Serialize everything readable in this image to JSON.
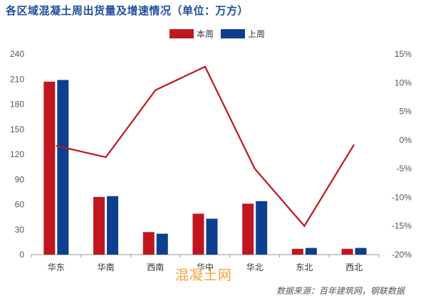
{
  "chart_data": {
    "type": "bar",
    "title": "各区域混凝土周出货量及增速情况（单位：万方）",
    "categories": [
      "华东",
      "华南",
      "西南",
      "华中",
      "华北",
      "东北",
      "西北"
    ],
    "series": [
      {
        "name": "本周",
        "type": "bar",
        "axis": "left",
        "values": [
          207,
          69,
          27,
          49,
          61,
          7,
          7
        ]
      },
      {
        "name": "上周",
        "type": "bar",
        "axis": "left",
        "values": [
          209,
          70,
          25,
          43,
          64,
          8,
          8
        ]
      },
      {
        "name": "",
        "type": "line",
        "axis": "right",
        "values": [
          -1.0,
          -3.0,
          8.7,
          12.8,
          -5.0,
          -15.0,
          -0.8
        ]
      }
    ],
    "ylim_left": [
      0,
      240
    ],
    "yticks_left": [
      "0",
      "30",
      "60",
      "90",
      "120",
      "150",
      "180",
      "210",
      "240"
    ],
    "ylim_right": [
      -20,
      15
    ],
    "yticks_right": [
      "-20%",
      "-15%",
      "-10%",
      "-5%",
      "0%",
      "5%",
      "10%",
      "15%"
    ],
    "legend": "top-center",
    "grid": false,
    "colors": {
      "this_week": "#c0161f",
      "last_week": "#0c3f8f",
      "growth_line": "#c0161f",
      "axis": "#999999"
    }
  },
  "watermark": "混凝土网",
  "source": "数据来源：百年建筑网，钢联数据"
}
